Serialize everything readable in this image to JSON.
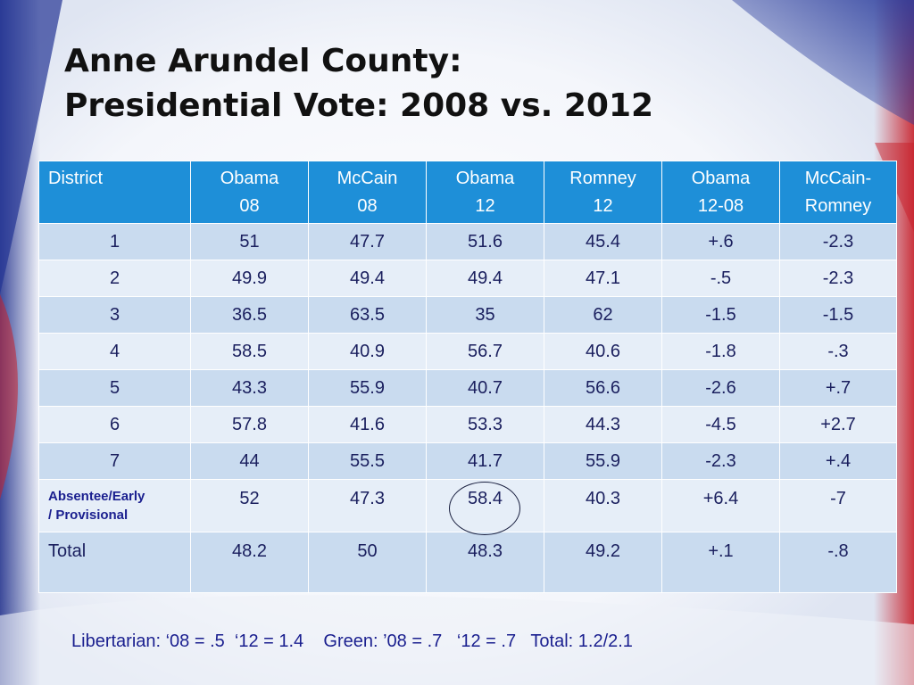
{
  "slide": {
    "title_line1": "Anne Arundel County:",
    "title_line2": "Presidential Vote: 2008 vs. 2012",
    "footnote": "Libertarian: ‘08 = .5  ‘12 = 1.4    Green: ’08 = .7   ‘12 = .7   Total: 1.2/2.1",
    "colors": {
      "header_bg": "#1e8fd8",
      "row_dark": "#c9dbef",
      "row_light": "#e6eef8",
      "text": "#1a1f5e"
    }
  },
  "table": {
    "headers": [
      [
        "District",
        ""
      ],
      [
        "Obama",
        "08"
      ],
      [
        "McCain",
        "08"
      ],
      [
        "Obama",
        "12"
      ],
      [
        "Romney",
        "12"
      ],
      [
        "Obama",
        "12-08"
      ],
      [
        "McCain-",
        "Romney"
      ]
    ],
    "rows": [
      [
        "1",
        "51",
        "47.7",
        "51.6",
        "45.4",
        "+.6",
        "-2.3"
      ],
      [
        "2",
        "49.9",
        "49.4",
        "49.4",
        "47.1",
        "-.5",
        "-2.3"
      ],
      [
        "3",
        "36.5",
        "63.5",
        "35",
        "62",
        "-1.5",
        "-1.5"
      ],
      [
        "4",
        "58.5",
        "40.9",
        "56.7",
        "40.6",
        "-1.8",
        "-.3"
      ],
      [
        "5",
        "43.3",
        "55.9",
        "40.7",
        "56.6",
        "-2.6",
        "+.7"
      ],
      [
        "6",
        "57.8",
        "41.6",
        "53.3",
        "44.3",
        "-4.5",
        "+2.7"
      ],
      [
        "7",
        "44",
        "55.5",
        "41.7",
        "55.9",
        "-2.3",
        "+.4"
      ]
    ],
    "absentee": {
      "label_line1": "Absentee/Early",
      "label_line2": "/ Provisional",
      "values": [
        "52",
        "47.3",
        "58.4",
        "40.3",
        "+6.4",
        "-7"
      ]
    },
    "total": {
      "label": "Total",
      "values": [
        "48.2",
        "50",
        "48.3",
        "49.2",
        "+.1",
        "-.8"
      ]
    }
  }
}
